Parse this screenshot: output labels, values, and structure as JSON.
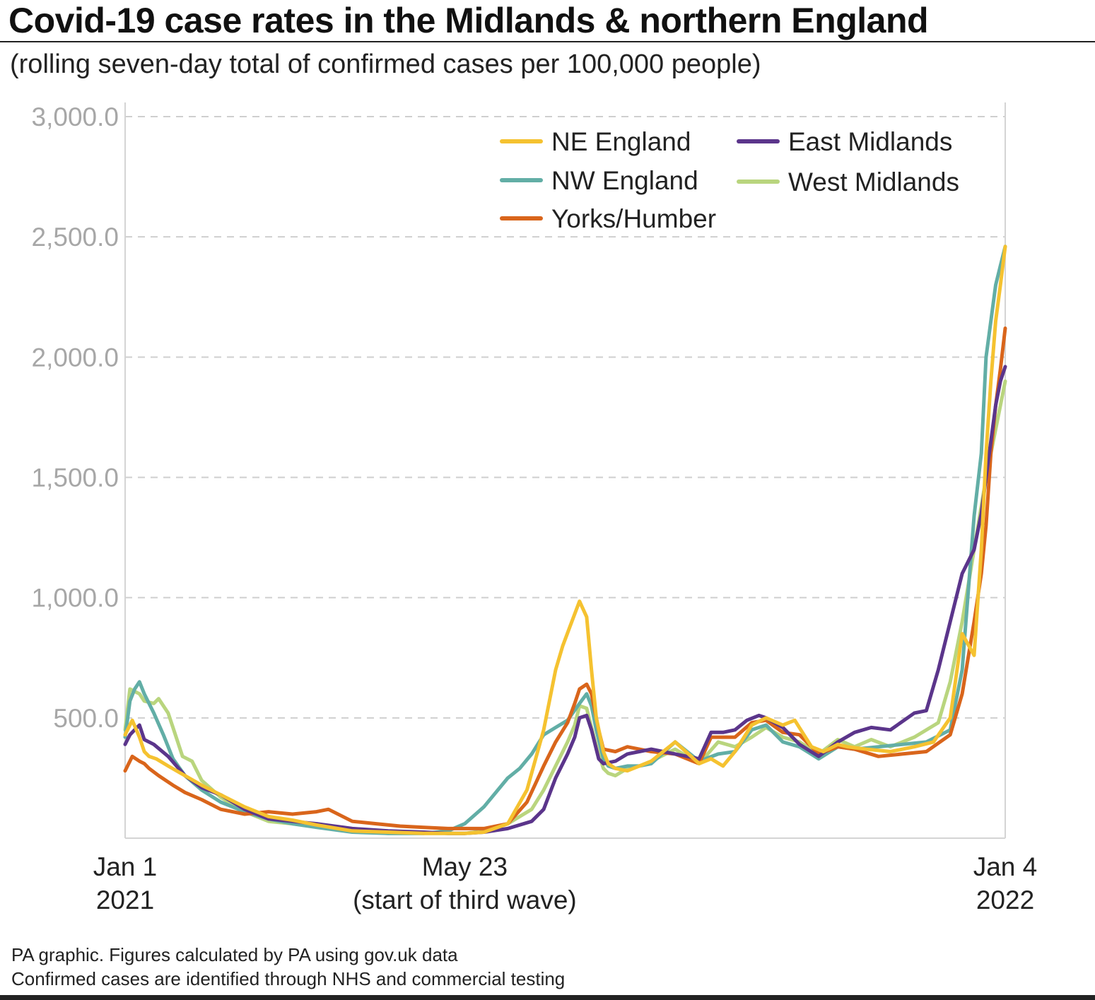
{
  "header": {
    "title": "Covid-19 case rates in the Midlands & northern England",
    "subtitle": "(rolling seven-day total of confirmed cases per 100,000 people)"
  },
  "footer": {
    "line1": "PA graphic. Figures calculated by PA using gov.uk data",
    "line2": "Confirmed cases are identified through NHS and commercial testing"
  },
  "colors": {
    "NE England": "#F5C230",
    "NW England": "#62AEA6",
    "Yorks/Humber": "#D9651B",
    "East Midlands": "#5B358B",
    "West Midlands": "#B9D57E",
    "grid": "#cfcfcf",
    "tick": "#a7a7a7"
  },
  "chart_data": {
    "type": "line",
    "title": "Covid-19 case rates in the Midlands & northern England",
    "subtitle": "(rolling seven-day total of confirmed cases per 100,000 people)",
    "xlabel": "",
    "ylabel": "",
    "xlim": [
      0,
      368
    ],
    "ylim": [
      0,
      3000
    ],
    "yticks": [
      500,
      1000,
      1500,
      2000,
      2500,
      3000
    ],
    "ytick_labels": [
      "500.0",
      "1,000.0",
      "1,500.0",
      "2,000.0",
      "2,500.0",
      "3,000.0"
    ],
    "xticks": [
      {
        "day": 0,
        "line1": "Jan 1",
        "line2": "2021"
      },
      {
        "day": 142,
        "line1": "May 23",
        "line2": "(start of third wave)"
      },
      {
        "day": 368,
        "line1": "Jan 4",
        "line2": "2022"
      }
    ],
    "grid": "horizontal-dashed",
    "legend_position": "top-right",
    "x_unit": "days since Jan 1 2021",
    "series": [
      {
        "name": "NE England",
        "x": [
          0,
          3,
          6,
          8,
          10,
          13,
          18,
          25,
          32,
          40,
          50,
          60,
          70,
          80,
          95,
          110,
          125,
          135,
          142,
          150,
          160,
          168,
          175,
          180,
          183,
          186,
          190,
          193,
          195,
          197,
          200,
          202,
          205,
          210,
          215,
          220,
          230,
          240,
          245,
          250,
          255,
          262,
          268,
          275,
          280,
          287,
          292,
          298,
          302,
          310,
          320,
          330,
          338,
          345,
          350,
          355,
          358,
          360,
          362,
          364,
          366,
          368
        ],
        "values": [
          430,
          490,
          420,
          360,
          340,
          330,
          300,
          260,
          220,
          180,
          130,
          90,
          75,
          55,
          30,
          25,
          20,
          20,
          20,
          25,
          60,
          200,
          450,
          700,
          800,
          880,
          985,
          920,
          700,
          500,
          360,
          310,
          290,
          280,
          300,
          320,
          400,
          310,
          330,
          300,
          360,
          470,
          500,
          470,
          490,
          380,
          360,
          390,
          380,
          370,
          360,
          380,
          400,
          500,
          850,
          760,
          1200,
          1600,
          1900,
          2150,
          2300,
          2460
        ]
      },
      {
        "name": "NW England",
        "x": [
          0,
          2,
          4,
          6,
          8,
          12,
          16,
          20,
          25,
          32,
          40,
          50,
          60,
          70,
          80,
          95,
          110,
          125,
          135,
          142,
          150,
          160,
          165,
          170,
          175,
          180,
          185,
          190,
          193,
          195,
          197,
          200,
          202,
          205,
          210,
          215,
          220,
          230,
          240,
          248,
          255,
          262,
          268,
          275,
          282,
          290,
          298,
          305,
          315,
          325,
          335,
          345,
          350,
          355,
          358,
          360,
          362,
          364,
          366,
          368
        ],
        "values": [
          420,
          570,
          620,
          650,
          600,
          520,
          430,
          330,
          260,
          200,
          150,
          110,
          80,
          60,
          45,
          25,
          20,
          20,
          30,
          60,
          130,
          250,
          290,
          350,
          430,
          460,
          490,
          560,
          600,
          550,
          450,
          330,
          300,
          290,
          300,
          300,
          310,
          400,
          320,
          350,
          360,
          450,
          470,
          400,
          380,
          330,
          380,
          370,
          380,
          390,
          400,
          450,
          700,
          1340,
          1600,
          2000,
          2150,
          2300,
          2380,
          2460
        ]
      },
      {
        "name": "Yorks/Humber",
        "x": [
          0,
          3,
          6,
          8,
          10,
          14,
          20,
          25,
          32,
          40,
          50,
          60,
          70,
          80,
          85,
          95,
          105,
          115,
          125,
          135,
          142,
          150,
          160,
          168,
          175,
          180,
          185,
          188,
          190,
          193,
          195,
          198,
          200,
          205,
          210,
          215,
          220,
          230,
          240,
          245,
          255,
          262,
          268,
          275,
          282,
          290,
          298,
          305,
          315,
          325,
          335,
          345,
          350,
          355,
          358,
          360,
          362,
          364,
          366,
          368
        ],
        "values": [
          280,
          340,
          320,
          310,
          290,
          260,
          220,
          190,
          160,
          120,
          100,
          110,
          100,
          110,
          120,
          70,
          60,
          50,
          45,
          40,
          40,
          40,
          60,
          150,
          300,
          400,
          480,
          560,
          620,
          640,
          600,
          450,
          370,
          360,
          380,
          370,
          360,
          350,
          310,
          420,
          420,
          480,
          490,
          440,
          430,
          350,
          380,
          370,
          340,
          350,
          360,
          430,
          600,
          900,
          1100,
          1300,
          1600,
          1800,
          1950,
          2120
        ]
      },
      {
        "name": "East Midlands",
        "x": [
          0,
          2,
          4,
          6,
          8,
          12,
          18,
          25,
          32,
          40,
          50,
          60,
          70,
          80,
          95,
          110,
          125,
          135,
          142,
          150,
          160,
          170,
          175,
          180,
          185,
          188,
          190,
          193,
          195,
          198,
          200,
          205,
          210,
          215,
          220,
          230,
          240,
          245,
          250,
          255,
          260,
          265,
          268,
          275,
          282,
          290,
          298,
          305,
          312,
          320,
          330,
          335,
          340,
          345,
          350,
          355,
          358,
          360,
          362,
          364,
          366,
          368
        ],
        "values": [
          390,
          430,
          450,
          470,
          410,
          390,
          340,
          260,
          210,
          180,
          120,
          80,
          70,
          60,
          40,
          30,
          25,
          20,
          20,
          25,
          40,
          70,
          120,
          250,
          350,
          420,
          500,
          510,
          450,
          330,
          310,
          320,
          350,
          360,
          370,
          350,
          330,
          440,
          440,
          450,
          490,
          510,
          500,
          460,
          390,
          340,
          400,
          440,
          460,
          450,
          520,
          530,
          700,
          900,
          1100,
          1200,
          1350,
          1500,
          1650,
          1800,
          1900,
          1960
        ]
      },
      {
        "name": "West Midlands",
        "x": [
          0,
          2,
          4,
          6,
          8,
          12,
          14,
          18,
          20,
          24,
          28,
          32,
          40,
          50,
          60,
          70,
          80,
          95,
          110,
          125,
          135,
          142,
          150,
          160,
          170,
          175,
          180,
          185,
          188,
          190,
          193,
          195,
          198,
          200,
          202,
          205,
          210,
          215,
          220,
          230,
          240,
          248,
          255,
          262,
          268,
          275,
          282,
          290,
          298,
          305,
          312,
          320,
          330,
          340,
          345,
          350,
          355,
          360,
          364,
          368
        ],
        "values": [
          450,
          620,
          610,
          600,
          570,
          560,
          580,
          520,
          460,
          340,
          320,
          240,
          170,
          110,
          70,
          60,
          50,
          30,
          20,
          20,
          20,
          20,
          30,
          60,
          120,
          200,
          300,
          400,
          470,
          550,
          540,
          460,
          350,
          290,
          270,
          260,
          290,
          300,
          320,
          370,
          310,
          400,
          380,
          420,
          460,
          420,
          400,
          350,
          410,
          380,
          410,
          380,
          420,
          480,
          650,
          900,
          1200,
          1500,
          1700,
          1900
        ]
      }
    ]
  }
}
